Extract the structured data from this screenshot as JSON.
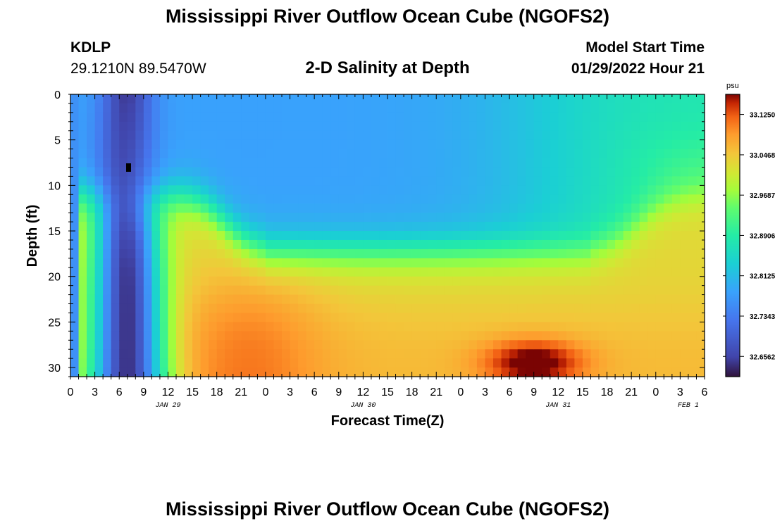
{
  "header": {
    "title": "Mississippi River Outflow Ocean Cube (NGOFS2)",
    "station": "KDLP",
    "coords": "29.1210N  89.5470W",
    "subtitle": "2-D Salinity at Depth",
    "model_start_label": "Model Start Time",
    "model_start_value": "01/29/2022 Hour 21"
  },
  "footer": {
    "title": "Mississippi River Outflow Ocean Cube (NGOFS2)"
  },
  "chart_data": {
    "type": "heatmap",
    "title": "2-D Salinity at Depth",
    "xlabel": "Forecast Time(Z)",
    "ylabel": "Depth (ft)",
    "xlim": [
      0,
      78
    ],
    "ylim": [
      31,
      0
    ],
    "x_tick_labels": [
      "0",
      "3",
      "6",
      "9",
      "12",
      "15",
      "18",
      "21",
      "0",
      "3",
      "6",
      "9",
      "12",
      "15",
      "18",
      "21",
      "0",
      "3",
      "6",
      "9",
      "12",
      "15",
      "18",
      "21",
      "0",
      "3",
      "6"
    ],
    "date_labels": [
      {
        "label": "JAN 29",
        "hour": 12
      },
      {
        "label": "JAN 30",
        "hour": 36
      },
      {
        "label": "JAN 31",
        "hour": 60
      },
      {
        "label": "FEB 1",
        "hour": 76
      }
    ],
    "y_ticks": [
      0,
      5,
      10,
      15,
      20,
      25,
      30
    ],
    "colorbar": {
      "unit": "psu",
      "min": 32.617,
      "max": 33.164,
      "tick_labels": [
        "33.1250",
        "33.0468",
        "32.9687",
        "32.8906",
        "32.8125",
        "32.7343",
        "32.6562"
      ],
      "tick_values": [
        33.125,
        33.0468,
        32.9687,
        32.8906,
        32.8125,
        32.7343,
        32.6562
      ]
    },
    "field_summary": {
      "low_salinity_plume": {
        "hours": [
          2,
          11
        ],
        "depth_ft": [
          0,
          31
        ],
        "salinity_psu": 32.64
      },
      "deep_layer_after_hour_15": {
        "depth_ft": [
          20,
          31
        ],
        "salinity_psu": 33.07
      },
      "surface_hours_30_to_48": {
        "depth_ft": [
          0,
          15
        ],
        "salinity_psu": 32.75
      },
      "surface_after_hour_66": {
        "depth_ft": [
          0,
          5
        ],
        "salinity_psu": 32.9
      },
      "maximum": {
        "hour": 56,
        "depth_ft": 29,
        "salinity_psu": 33.16
      }
    },
    "marker": {
      "hour": 7,
      "depth_ft": 8
    }
  }
}
